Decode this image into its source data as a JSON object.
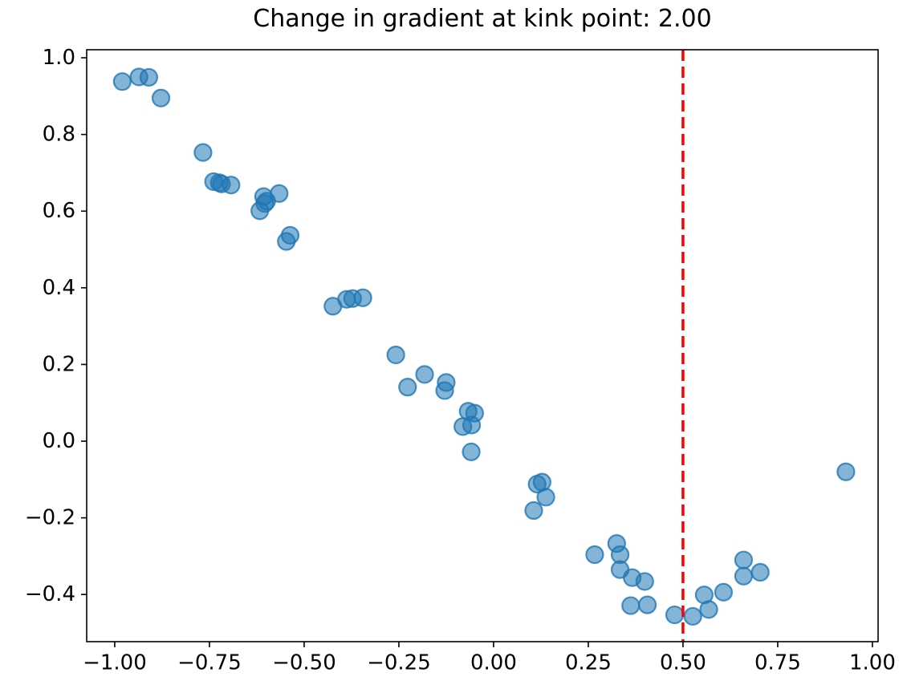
{
  "chart_data": {
    "type": "scatter",
    "title": "Change in gradient at kink point: 2.00",
    "xlabel": "",
    "ylabel": "",
    "xlim": [
      -1.074,
      1.015
    ],
    "ylim": [
      -0.523,
      1.021
    ],
    "grid": false,
    "legend": null,
    "x_ticks": [
      -1.0,
      -0.75,
      -0.5,
      -0.25,
      0.0,
      0.25,
      0.5,
      0.75,
      1.0
    ],
    "x_tick_labels": [
      "−1.00",
      "−0.75",
      "−0.50",
      "−0.25",
      "0.00",
      "0.25",
      "0.50",
      "0.75",
      "1.00"
    ],
    "y_ticks": [
      -0.4,
      -0.2,
      0.0,
      0.2,
      0.4,
      0.6,
      0.8,
      1.0
    ],
    "y_tick_labels": [
      "−0.4",
      "−0.2",
      "0.0",
      "0.2",
      "0.4",
      "0.6",
      "0.8",
      "1.0"
    ],
    "kink_vline": {
      "x": 0.5,
      "color": "#ff0000",
      "line_style": "dashed"
    },
    "change_in_gradient": "2.00",
    "marker": {
      "color": "#1f77b4",
      "fill_opacity": 0.55,
      "edge_opacity": 0.8,
      "radius": 10.5,
      "edge_width": 2.2
    },
    "axis_color": "#000000",
    "background_color": "#ffffff",
    "points": [
      [
        -0.98,
        0.938
      ],
      [
        -0.936,
        0.95
      ],
      [
        -0.91,
        0.949
      ],
      [
        -0.878,
        0.895
      ],
      [
        -0.767,
        0.753
      ],
      [
        -0.739,
        0.677
      ],
      [
        -0.724,
        0.674
      ],
      [
        -0.718,
        0.671
      ],
      [
        -0.693,
        0.668
      ],
      [
        -0.607,
        0.638
      ],
      [
        -0.599,
        0.626
      ],
      [
        -0.604,
        0.62
      ],
      [
        -0.617,
        0.601
      ],
      [
        -0.566,
        0.646
      ],
      [
        -0.547,
        0.521
      ],
      [
        -0.537,
        0.537
      ],
      [
        -0.424,
        0.352
      ],
      [
        -0.388,
        0.37
      ],
      [
        -0.372,
        0.372
      ],
      [
        -0.345,
        0.374
      ],
      [
        -0.258,
        0.225
      ],
      [
        -0.227,
        0.141
      ],
      [
        -0.182,
        0.174
      ],
      [
        -0.129,
        0.132
      ],
      [
        -0.125,
        0.153
      ],
      [
        -0.081,
        0.038
      ],
      [
        -0.067,
        0.078
      ],
      [
        -0.058,
        0.042
      ],
      [
        -0.05,
        0.073
      ],
      [
        -0.059,
        -0.028
      ],
      [
        0.106,
        -0.181
      ],
      [
        0.115,
        -0.112
      ],
      [
        0.128,
        -0.107
      ],
      [
        0.138,
        -0.146
      ],
      [
        0.267,
        -0.296
      ],
      [
        0.325,
        -0.267
      ],
      [
        0.334,
        -0.296
      ],
      [
        0.334,
        -0.335
      ],
      [
        0.366,
        -0.356
      ],
      [
        0.399,
        -0.366
      ],
      [
        0.362,
        -0.429
      ],
      [
        0.406,
        -0.427
      ],
      [
        0.478,
        -0.453
      ],
      [
        0.526,
        -0.457
      ],
      [
        0.568,
        -0.439
      ],
      [
        0.556,
        -0.401
      ],
      [
        0.607,
        -0.394
      ],
      [
        0.66,
        -0.31
      ],
      [
        0.66,
        -0.352
      ],
      [
        0.704,
        -0.342
      ],
      [
        0.93,
        -0.08
      ]
    ]
  }
}
